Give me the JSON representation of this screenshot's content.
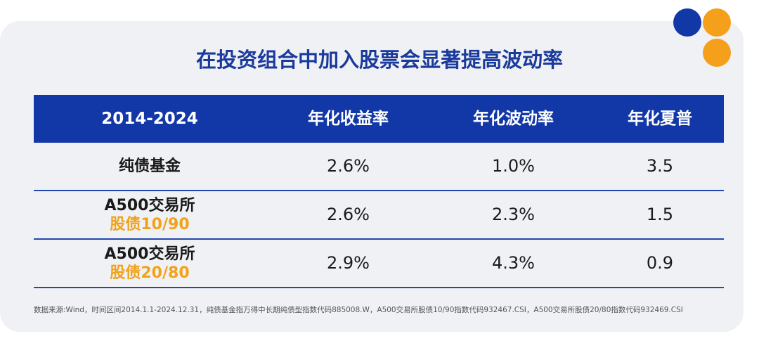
{
  "title": "在投资组合中加入股票会显著提高波动率",
  "table": {
    "header": [
      "2014-2024",
      "年化收益率",
      "年化波动率",
      "年化夏普"
    ],
    "rows": [
      {
        "label": "纯债基金",
        "cells": [
          "2.6%",
          "1.0%",
          "3.5"
        ]
      },
      {
        "label": "A500交易所",
        "sublabel": "股债10/90",
        "cells": [
          "2.6%",
          "2.3%",
          "1.5"
        ]
      },
      {
        "label": "A500交易所",
        "sublabel": "股债20/80",
        "cells": [
          "2.9%",
          "4.3%",
          "0.9"
        ]
      }
    ]
  },
  "footnote": "数据来源:Wind，时间区间2014.1.1-2024.12.31，纯债基金指万得中长期纯债型指数代码885008.W，A500交易所股债10/90指数代码932467.CSI，A500交易所股债20/80指数代码932469.CSI"
}
